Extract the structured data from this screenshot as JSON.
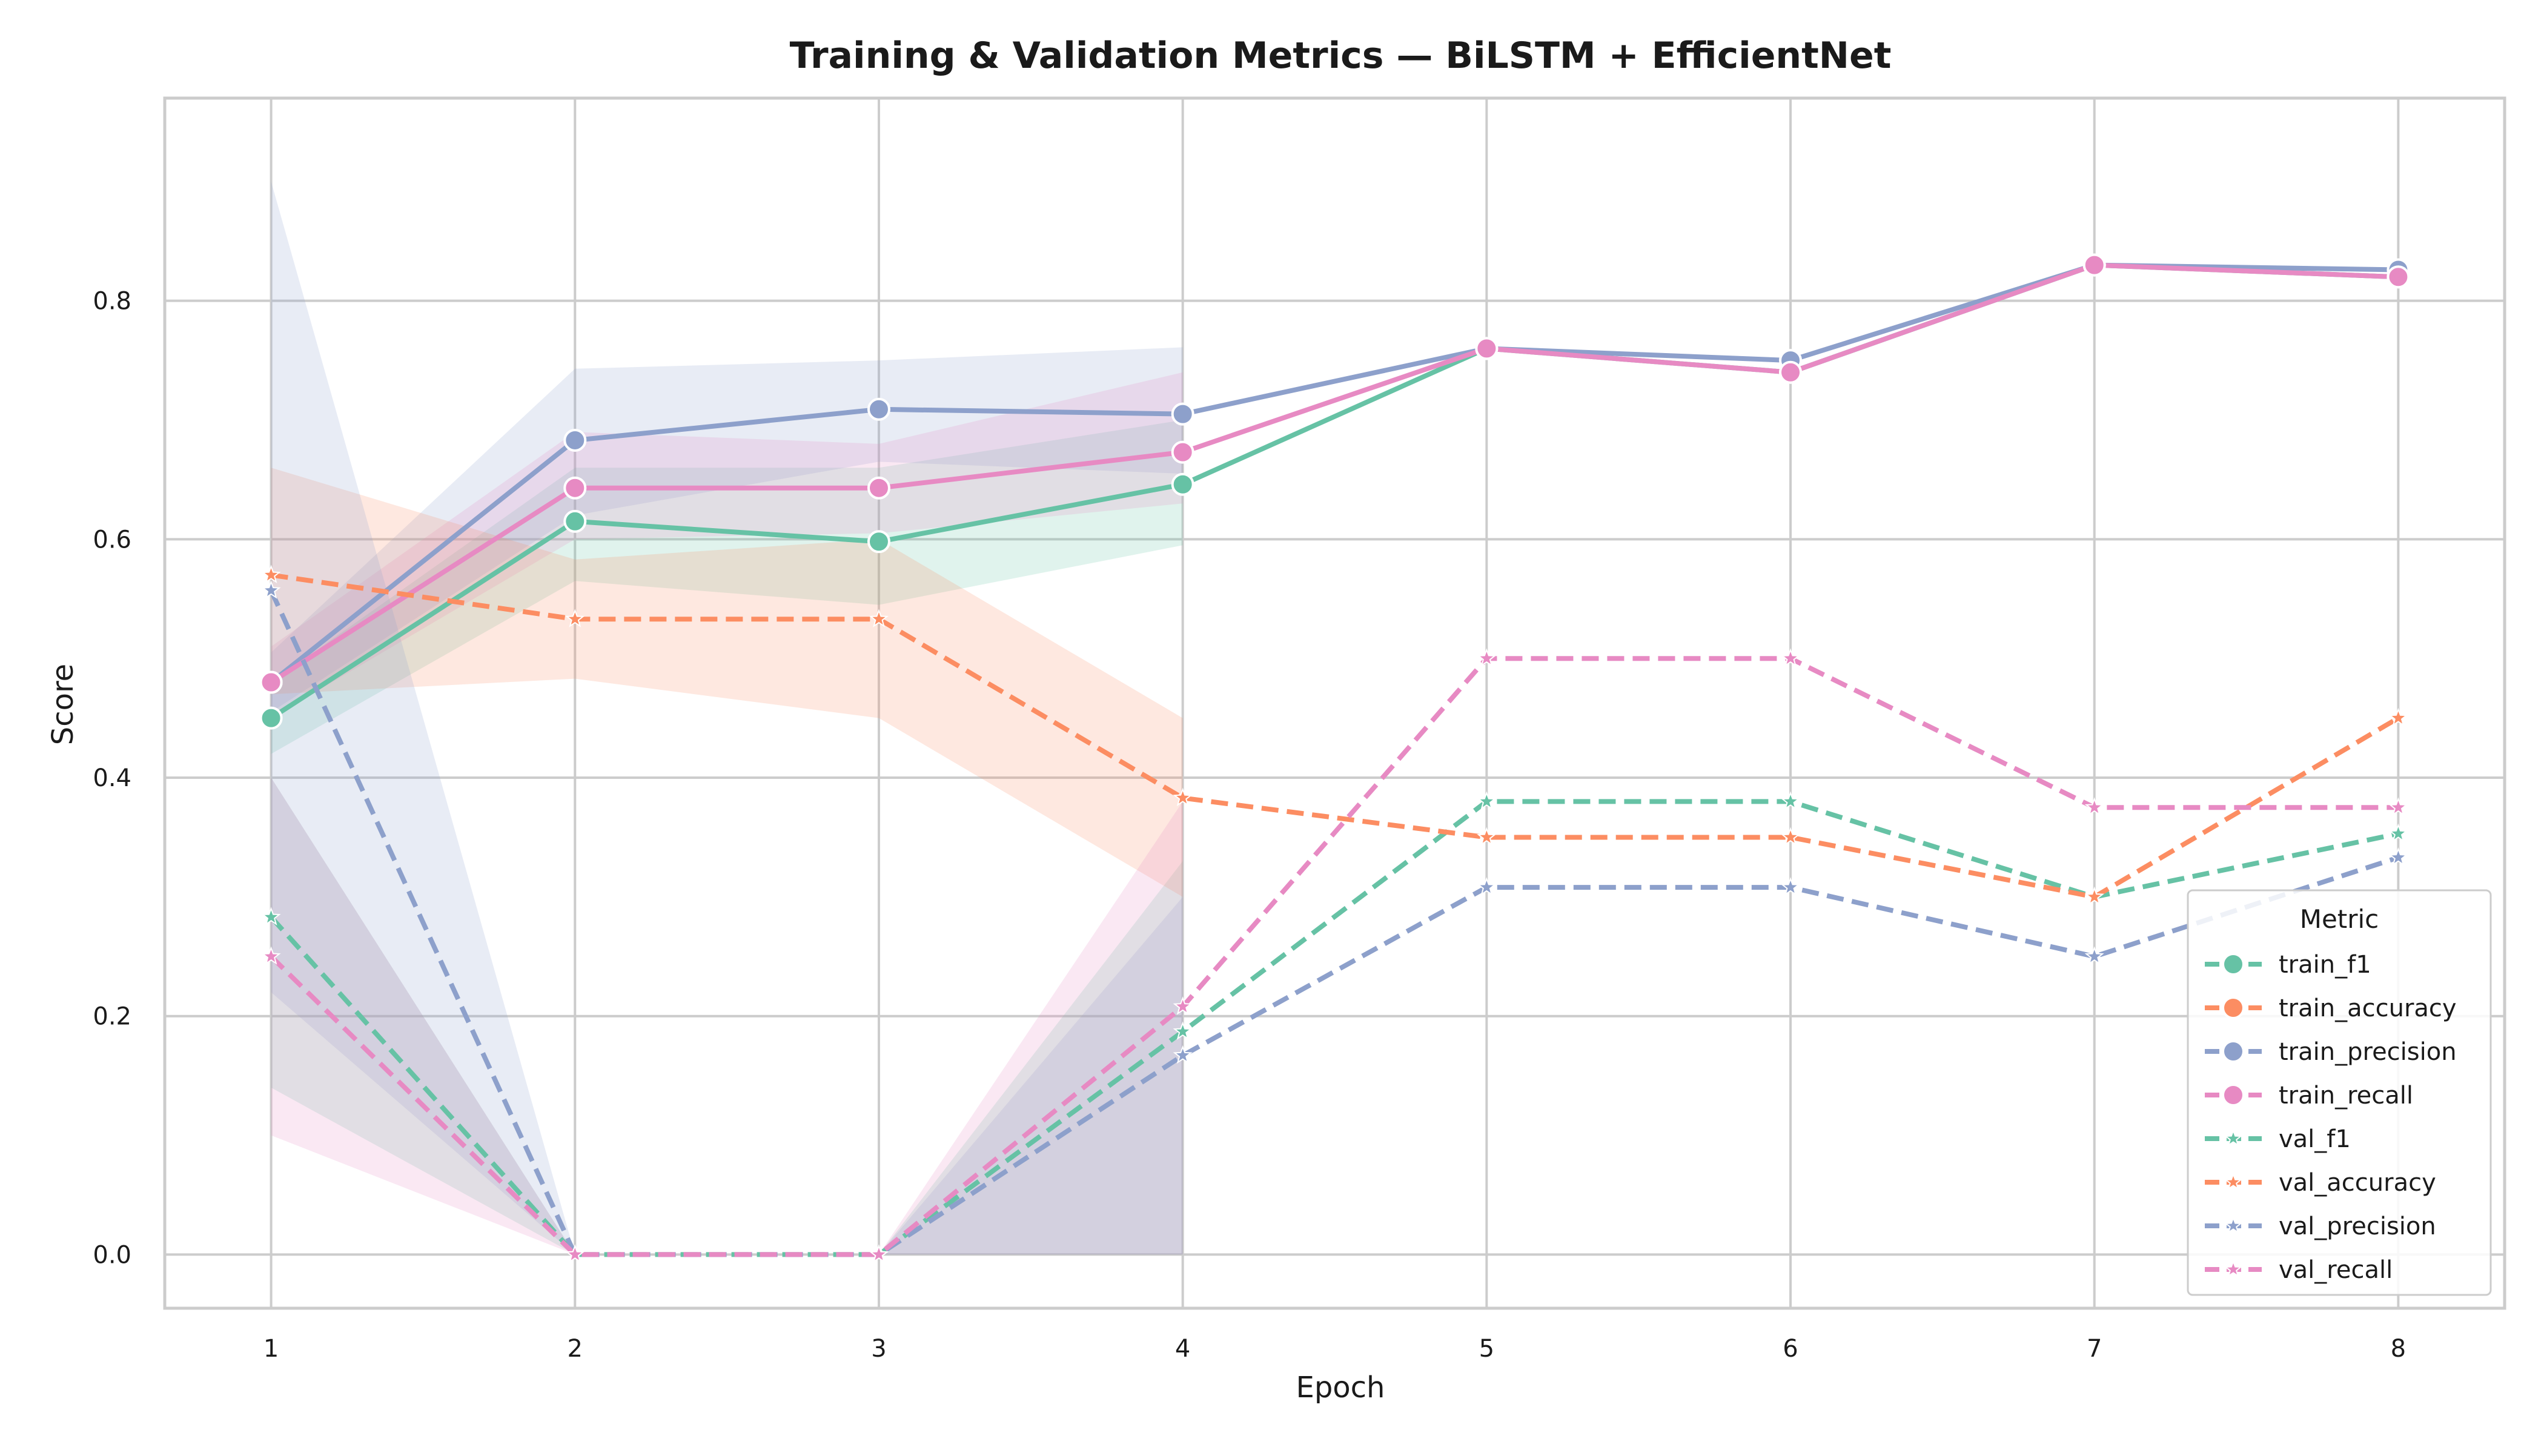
{
  "chart_data": {
    "type": "line",
    "title": "Training & Validation Metrics — BiLSTM + EfficientNet",
    "xlabel": "Epoch",
    "ylabel": "Score",
    "x": [
      1,
      2,
      3,
      4,
      5,
      6,
      7,
      8
    ],
    "xlim": [
      0.65,
      8.35
    ],
    "ylim": [
      -0.045,
      0.97
    ],
    "xticks": [
      "1",
      "2",
      "3",
      "4",
      "5",
      "6",
      "7",
      "8"
    ],
    "yticks": [
      "0.0",
      "0.2",
      "0.4",
      "0.6",
      "0.8"
    ],
    "ytick_values": [
      0.0,
      0.2,
      0.4,
      0.6,
      0.8
    ],
    "grid": true,
    "legend": {
      "title": "Metric",
      "position": "lower-right"
    },
    "series": [
      {
        "name": "train_f1",
        "color": "#66c2a5",
        "style": "solid",
        "marker": "circle",
        "values": [
          0.45,
          0.615,
          0.598,
          0.646,
          0.76,
          0.74,
          0.83,
          0.82
        ],
        "ci_low": [
          0.42,
          0.565,
          0.545,
          0.595,
          null,
          null,
          null,
          null
        ],
        "ci_high": [
          0.48,
          0.66,
          0.66,
          0.7,
          null,
          null,
          null,
          null
        ]
      },
      {
        "name": "train_accuracy",
        "color": "#fc8d62",
        "style": "solid",
        "marker": "circle",
        "values": [
          null,
          null,
          null,
          null,
          null,
          null,
          null,
          null
        ]
      },
      {
        "name": "train_precision",
        "color": "#8da0cb",
        "style": "solid",
        "marker": "circle",
        "values": [
          0.48,
          0.683,
          0.709,
          0.705,
          0.76,
          0.75,
          0.83,
          0.826
        ],
        "ci_low": [
          0.455,
          0.62,
          0.665,
          0.655,
          null,
          null,
          null,
          null
        ],
        "ci_high": [
          0.505,
          0.743,
          0.75,
          0.761,
          null,
          null,
          null,
          null
        ]
      },
      {
        "name": "train_recall",
        "color": "#e78ac3",
        "style": "solid",
        "marker": "circle",
        "values": [
          0.48,
          0.643,
          0.643,
          0.673,
          0.76,
          0.74,
          0.83,
          0.82
        ],
        "ci_low": [
          0.45,
          0.6,
          0.605,
          0.63,
          null,
          null,
          null,
          null
        ],
        "ci_high": [
          0.51,
          0.69,
          0.68,
          0.74,
          null,
          null,
          null,
          null
        ]
      },
      {
        "name": "val_f1",
        "color": "#66c2a5",
        "style": "dashed",
        "marker": "star",
        "values": [
          0.283,
          0.0,
          0.0,
          0.187,
          0.38,
          0.38,
          0.3,
          0.353
        ],
        "ci_low": [
          0.14,
          0.0,
          0.0,
          0.0,
          null,
          null,
          null,
          null
        ],
        "ci_high": [
          0.4,
          0.0,
          0.0,
          0.33,
          null,
          null,
          null,
          null
        ]
      },
      {
        "name": "val_accuracy",
        "color": "#fc8d62",
        "style": "dashed",
        "marker": "star",
        "values": [
          0.57,
          0.533,
          0.533,
          0.383,
          0.35,
          0.35,
          0.3,
          0.45
        ],
        "ci_low": [
          0.47,
          0.483,
          0.45,
          0.3,
          null,
          null,
          null,
          null
        ],
        "ci_high": [
          0.66,
          0.583,
          0.6,
          0.45,
          null,
          null,
          null,
          null
        ]
      },
      {
        "name": "val_precision",
        "color": "#8da0cb",
        "style": "dashed",
        "marker": "star",
        "values": [
          0.557,
          0.0,
          0.0,
          0.167,
          0.308,
          0.308,
          0.25,
          0.333
        ],
        "ci_low": [
          0.22,
          0.0,
          0.0,
          0.0,
          null,
          null,
          null,
          null
        ],
        "ci_high": [
          0.9,
          0.0,
          0.0,
          0.3,
          null,
          null,
          null,
          null
        ]
      },
      {
        "name": "val_recall",
        "color": "#e78ac3",
        "style": "dashed",
        "marker": "star",
        "values": [
          0.25,
          0.0,
          0.0,
          0.208,
          0.5,
          0.5,
          0.375,
          0.375
        ],
        "ci_low": [
          0.1,
          0.0,
          0.0,
          0.0,
          null,
          null,
          null,
          null
        ],
        "ci_high": [
          0.4,
          0.0,
          0.0,
          0.38,
          null,
          null,
          null,
          null
        ]
      }
    ]
  }
}
